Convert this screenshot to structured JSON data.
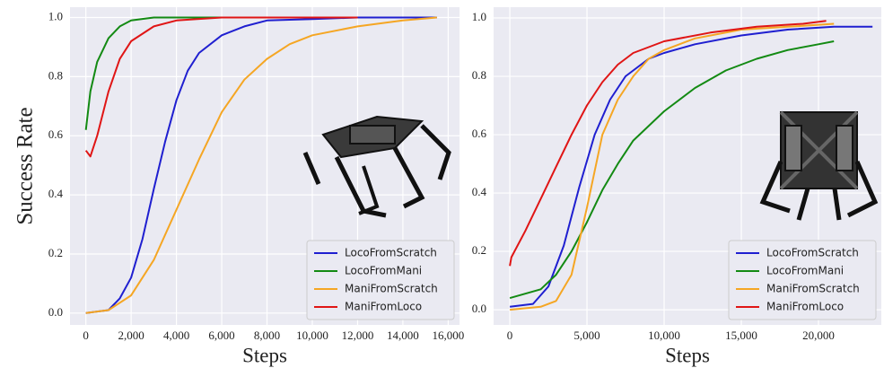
{
  "chart_data": [
    {
      "type": "line",
      "y_label": "Success Rate",
      "x_label": "Steps",
      "xlim": [
        -700,
        16500
      ],
      "ylim": [
        -0.04,
        1.035
      ],
      "xticks": [
        0,
        {
          "value": 2000,
          "label": "2,000"
        },
        {
          "value": 4000,
          "label": "4,000"
        },
        {
          "value": 6000,
          "label": "6,000"
        },
        {
          "value": 8000,
          "label": "8,000"
        },
        {
          "value": 10000,
          "label": "10,000"
        },
        {
          "value": 12000,
          "label": "12,000"
        },
        {
          "value": 14000,
          "label": "14,000"
        },
        {
          "value": 16000,
          "label": "16,000"
        }
      ],
      "yticks": [
        {
          "value": 0,
          "label": "0.0"
        },
        0.2,
        0.4,
        0.6,
        0.8,
        {
          "value": 1,
          "label": "1.0"
        }
      ],
      "grid": true,
      "legend": "lower right",
      "series": [
        {
          "name": "LocoFromScratch",
          "color": "#1f1fd0",
          "x": [
            0,
            1000,
            1500,
            2000,
            2500,
            3000,
            3500,
            4000,
            4500,
            5000,
            6000,
            7000,
            8000,
            10000,
            12000,
            15500
          ],
          "values": [
            0,
            0.01,
            0.05,
            0.12,
            0.25,
            0.42,
            0.58,
            0.72,
            0.82,
            0.88,
            0.94,
            0.97,
            0.99,
            0.995,
            1,
            1
          ]
        },
        {
          "name": "LocoFromMani",
          "color": "#138a13",
          "x": [
            0,
            200,
            500,
            1000,
            1500,
            2000,
            3000,
            12000
          ],
          "values": [
            0.62,
            0.75,
            0.85,
            0.93,
            0.97,
            0.99,
            1,
            1
          ]
        },
        {
          "name": "ManiFromScratch",
          "color": "#f5a623",
          "x": [
            0,
            1000,
            2000,
            3000,
            4000,
            5000,
            6000,
            7000,
            8000,
            9000,
            10000,
            12000,
            14000,
            15500
          ],
          "values": [
            0,
            0.01,
            0.06,
            0.18,
            0.35,
            0.52,
            0.68,
            0.79,
            0.86,
            0.91,
            0.94,
            0.97,
            0.99,
            1
          ]
        },
        {
          "name": "ManiFromLoco",
          "color": "#e01515",
          "x": [
            0,
            200,
            500,
            1000,
            1500,
            2000,
            3000,
            4000,
            6000,
            12000
          ],
          "values": [
            0.55,
            0.53,
            0.6,
            0.75,
            0.86,
            0.92,
            0.97,
            0.99,
            1,
            1
          ]
        }
      ]
    },
    {
      "type": "line",
      "x_label": "Steps",
      "xlim": [
        -1050,
        24070
      ],
      "ylim": [
        -0.052,
        1.037
      ],
      "xticks": [
        0,
        {
          "value": 5000,
          "label": "5,000"
        },
        {
          "value": 10000,
          "label": "10,000"
        },
        {
          "value": 15000,
          "label": "15,000"
        },
        {
          "value": 20000,
          "label": "20,000"
        }
      ],
      "yticks": [
        {
          "value": 0,
          "label": "0.0"
        },
        0.2,
        0.4,
        0.6,
        0.8,
        {
          "value": 1,
          "label": "1.0"
        }
      ],
      "grid": true,
      "legend": "lower right",
      "series": [
        {
          "name": "LocoFromScratch",
          "color": "#1f1fd0",
          "x": [
            0,
            1500,
            2500,
            3500,
            4500,
            5500,
            6500,
            7500,
            9000,
            10000,
            12000,
            15000,
            18000,
            21000,
            23500
          ],
          "values": [
            0.01,
            0.02,
            0.08,
            0.22,
            0.42,
            0.6,
            0.72,
            0.8,
            0.86,
            0.88,
            0.91,
            0.94,
            0.96,
            0.97,
            0.97
          ]
        },
        {
          "name": "LocoFromMani",
          "color": "#138a13",
          "x": [
            0,
            2000,
            3000,
            4000,
            5000,
            6000,
            7000,
            8000,
            10000,
            12000,
            14000,
            16000,
            18000,
            20000,
            21000
          ],
          "values": [
            0.04,
            0.07,
            0.12,
            0.2,
            0.3,
            0.41,
            0.5,
            0.58,
            0.68,
            0.76,
            0.82,
            0.86,
            0.89,
            0.91,
            0.92
          ]
        },
        {
          "name": "ManiFromScratch",
          "color": "#f5a623",
          "x": [
            0,
            2000,
            3000,
            4000,
            5000,
            6000,
            7000,
            8000,
            9000,
            10000,
            12000,
            15000,
            18000,
            21000
          ],
          "values": [
            0,
            0.01,
            0.03,
            0.12,
            0.35,
            0.6,
            0.72,
            0.8,
            0.86,
            0.89,
            0.93,
            0.96,
            0.97,
            0.98
          ]
        },
        {
          "name": "ManiFromLoco",
          "color": "#e01515",
          "x": [
            0,
            100,
            1000,
            2000,
            3000,
            4000,
            5000,
            6000,
            7000,
            8000,
            10000,
            13000,
            16000,
            19000,
            20500
          ],
          "values": [
            0.15,
            0.18,
            0.27,
            0.38,
            0.49,
            0.6,
            0.7,
            0.78,
            0.84,
            0.88,
            0.92,
            0.95,
            0.97,
            0.98,
            0.99
          ]
        }
      ]
    }
  ]
}
